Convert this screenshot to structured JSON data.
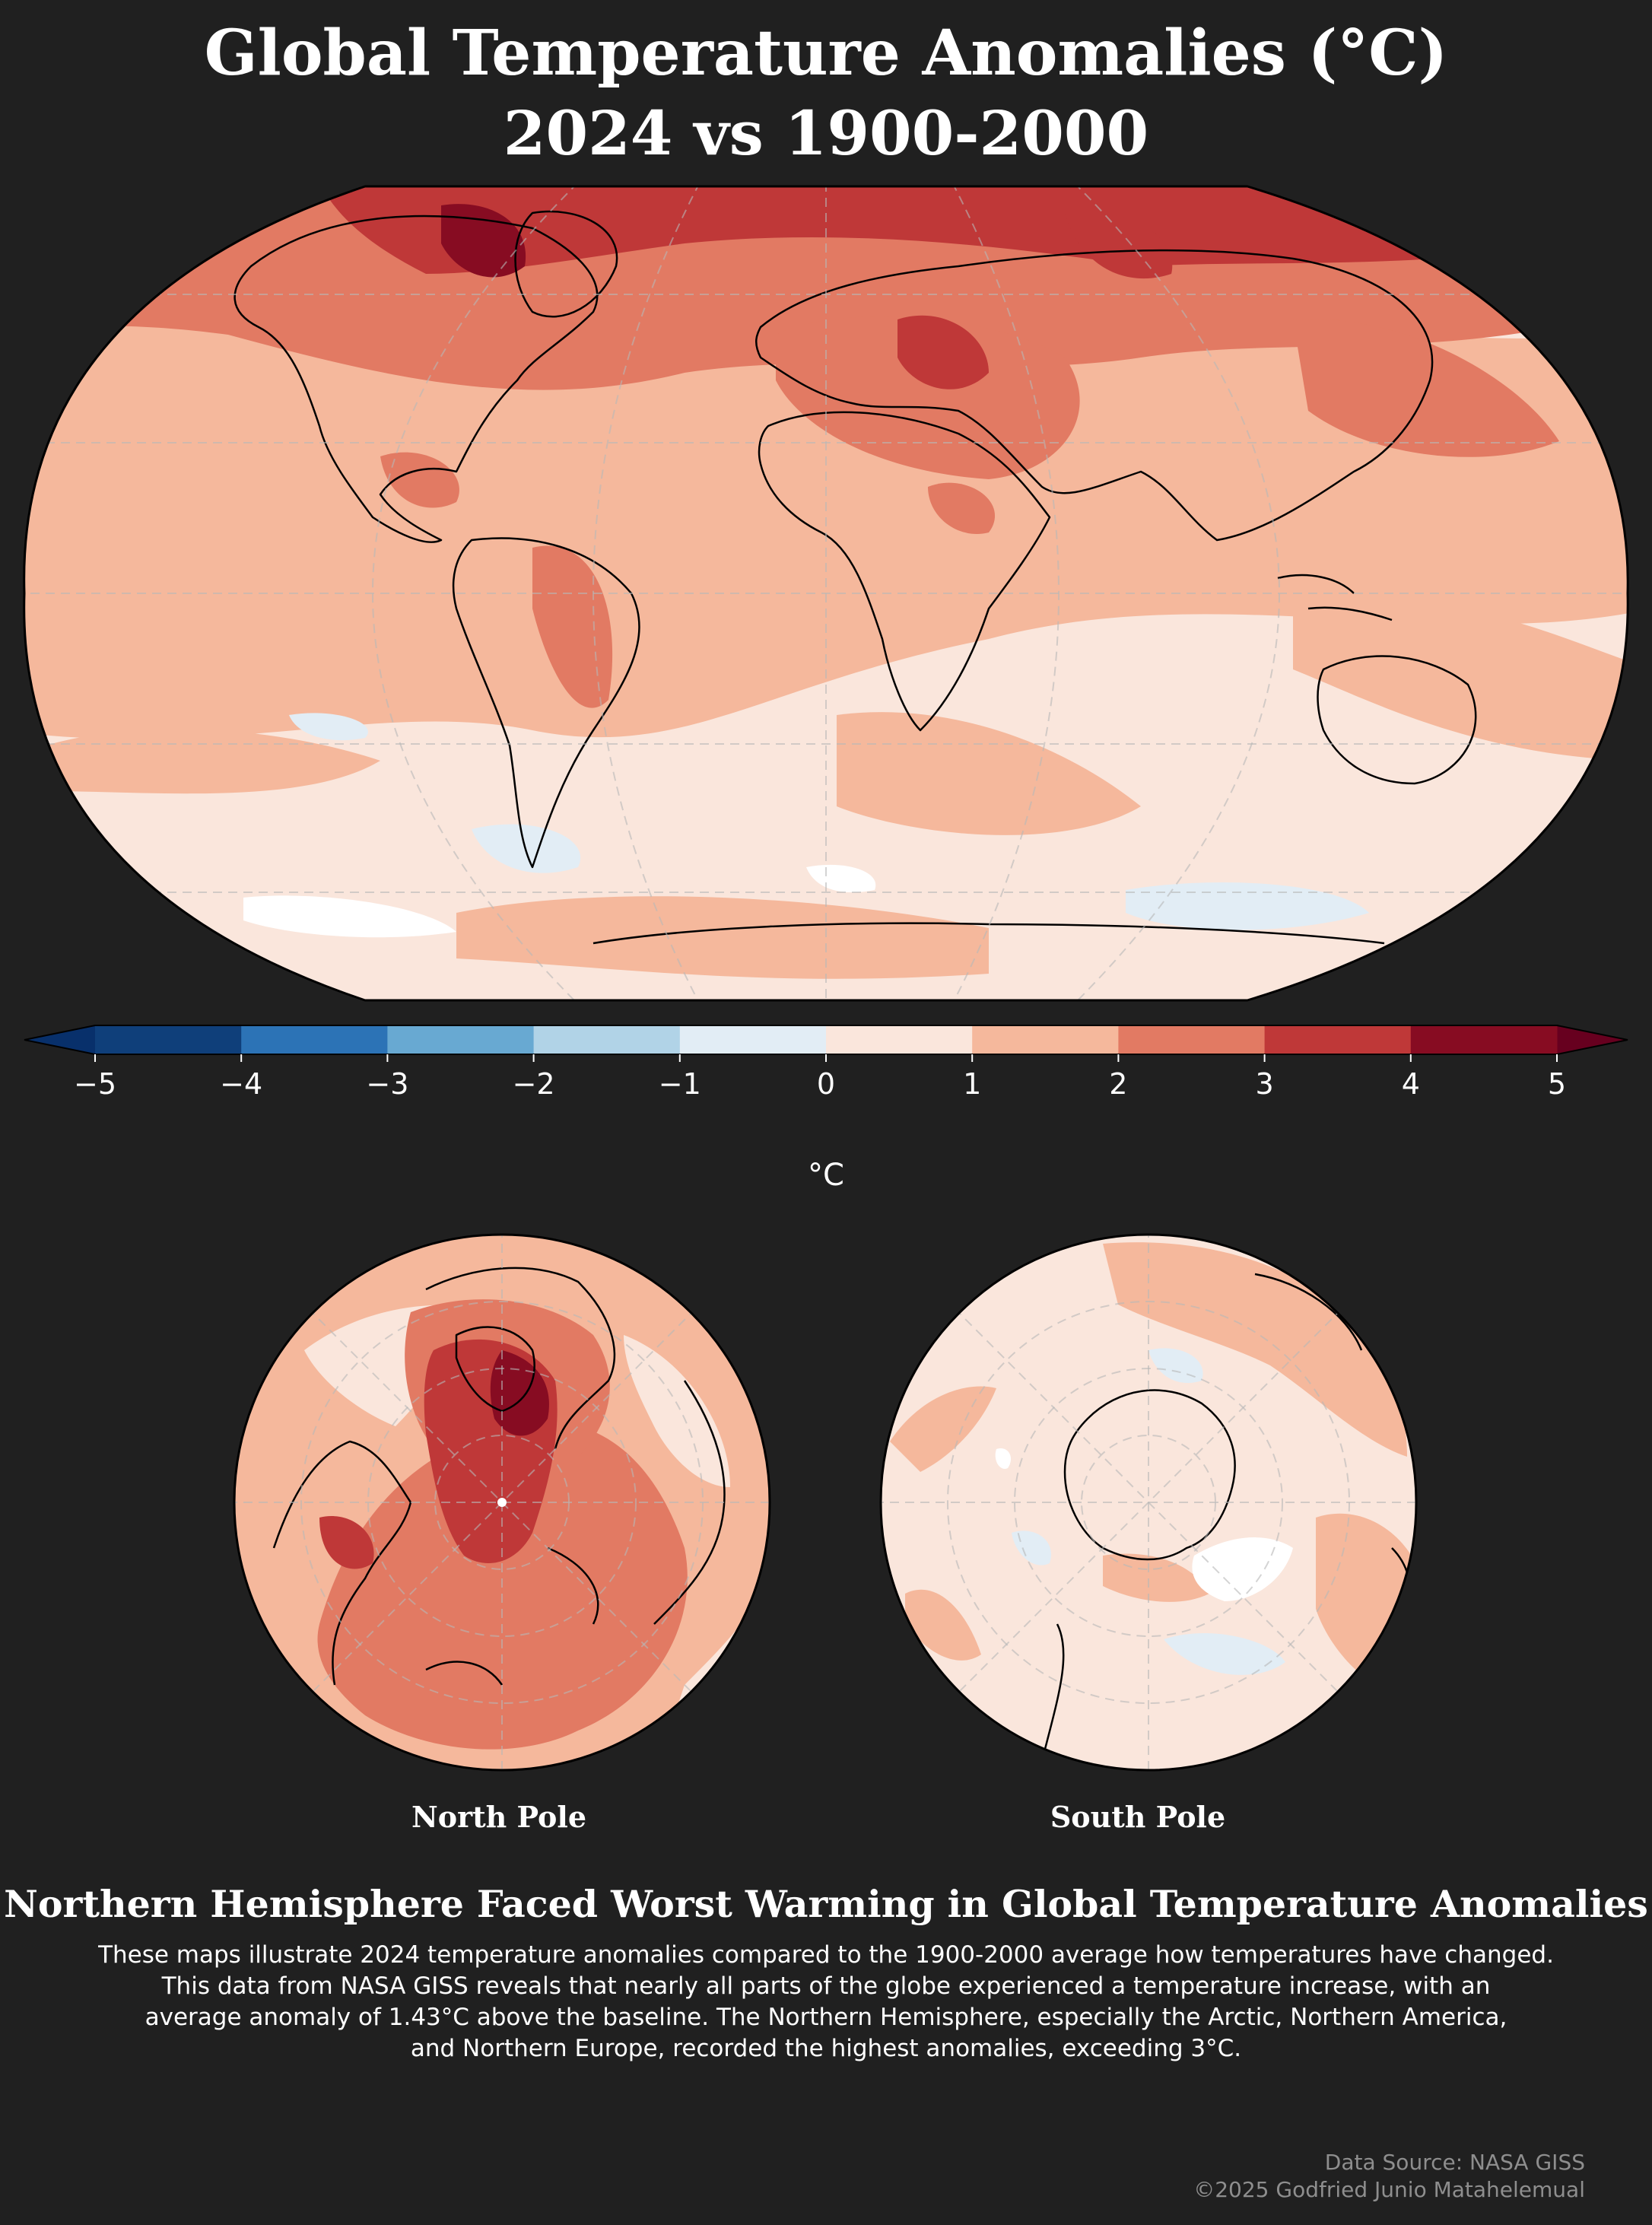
{
  "title_line1": "Global Temperature Anomalies (°C)",
  "title_line2": "2024 vs 1900-2000",
  "colorbar": {
    "ticks": [
      "−5",
      "−4",
      "−3",
      "−2",
      "−1",
      "0",
      "1",
      "2",
      "3",
      "4",
      "5"
    ],
    "unit": "°C",
    "colors": [
      "#0f3f7a",
      "#2c73b6",
      "#68a9d2",
      "#b1d3e7",
      "#e2edf5",
      "#fae6dc",
      "#f5b89c",
      "#e27a63",
      "#bf3838",
      "#870c22"
    ],
    "extend_low": "#08306b",
    "extend_high": "#67001f"
  },
  "panels": {
    "north_label": "North Pole",
    "south_label": "South Pole"
  },
  "headline": "Northern Hemisphere Faced Worst Warming in Global Temperature Anomalies",
  "description": {
    "line1": "These maps illustrate 2024 temperature anomalies compared to the 1900-2000 average how temperatures have changed.",
    "line2": "This data from NASA GISS reveals that nearly all parts of the globe experienced a temperature increase, with an",
    "line3": "average anomaly of 1.43°C above the baseline. The Northern Hemisphere, especially the Arctic, Northern America,",
    "line4": "and Northern Europe, recorded the highest anomalies, exceeding 3°C."
  },
  "credits": {
    "source": "Data Source: NASA GISS",
    "copyright": "©2025 Godfried Junio Matahelemual"
  }
}
